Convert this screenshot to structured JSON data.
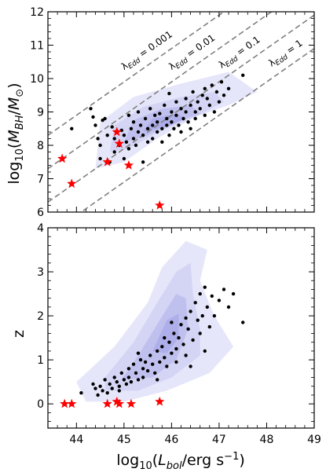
{
  "chart_data": [
    {
      "type": "scatter",
      "panel": "top",
      "xlim": [
        43.4,
        49
      ],
      "ylim": [
        6,
        12
      ],
      "xticks": [
        44,
        45,
        46,
        47,
        48,
        49
      ],
      "yticks": [
        6,
        7,
        8,
        9,
        10,
        11,
        12
      ],
      "ytick_labels": [
        "6",
        "7",
        "8",
        "9",
        "10",
        "11",
        "12"
      ],
      "ylabel": "log10(MBH/M⊙)",
      "ylabel_parts": {
        "pre": "log",
        "sub1": "10",
        "mid": "(",
        "M": "M",
        "subBH": "BH",
        "slash": "/",
        "M2": "M",
        "subsun": "⊙",
        "post": ")"
      },
      "eddington_lines": [
        {
          "label": "λEdd = 0.001",
          "label_parts": [
            "λ",
            "Edd",
            " = 0.001"
          ],
          "lambda": 0.001,
          "label_x": 45.0
        },
        {
          "label": "λEdd = 0.01",
          "label_parts": [
            "λ",
            "Edd",
            " = 0.01"
          ],
          "lambda": 0.01,
          "label_x": 46.0
        },
        {
          "label": "λEdd = 0.1",
          "label_parts": [
            "λ",
            "Edd",
            " = 0.1"
          ],
          "lambda": 0.1,
          "label_x": 47.05
        },
        {
          "label": "λEdd = 1",
          "label_parts": [
            "λ",
            "Edd",
            " = 1"
          ],
          "lambda": 1,
          "label_x": 48.1
        }
      ],
      "series": [
        {
          "marker": "dot",
          "color": "#000000",
          "points": [
            [
              43.9,
              8.5
            ],
            [
              44.3,
              9.1
            ],
            [
              44.35,
              8.85
            ],
            [
              44.4,
              8.6
            ],
            [
              44.45,
              8.2
            ],
            [
              44.5,
              7.6
            ],
            [
              44.5,
              8.0
            ],
            [
              44.6,
              8.8
            ],
            [
              44.65,
              8.3
            ],
            [
              44.7,
              7.5
            ],
            [
              44.75,
              8.55
            ],
            [
              44.8,
              8.2
            ],
            [
              44.8,
              7.8
            ],
            [
              44.85,
              8.4
            ],
            [
              44.9,
              8.0
            ],
            [
              44.95,
              8.45
            ],
            [
              45.0,
              8.3
            ],
            [
              45.0,
              7.6
            ],
            [
              45.05,
              8.1
            ],
            [
              45.1,
              8.9
            ],
            [
              45.1,
              7.9
            ],
            [
              45.15,
              8.5
            ],
            [
              45.2,
              8.2
            ],
            [
              45.2,
              8.7
            ],
            [
              45.25,
              8.0
            ],
            [
              45.3,
              8.4
            ],
            [
              45.3,
              9.0
            ],
            [
              45.35,
              8.6
            ],
            [
              45.4,
              8.3
            ],
            [
              45.4,
              7.5
            ],
            [
              45.45,
              8.8
            ],
            [
              45.5,
              8.1
            ],
            [
              45.5,
              8.5
            ],
            [
              45.55,
              9.1
            ],
            [
              45.6,
              8.6
            ],
            [
              45.6,
              8.2
            ],
            [
              45.65,
              8.9
            ],
            [
              45.7,
              8.4
            ],
            [
              45.7,
              8.7
            ],
            [
              45.75,
              8.95
            ],
            [
              45.8,
              8.5
            ],
            [
              45.8,
              8.1
            ],
            [
              45.85,
              9.2
            ],
            [
              45.9,
              8.8
            ],
            [
              45.9,
              8.6
            ],
            [
              45.95,
              8.3
            ],
            [
              46.0,
              9.0
            ],
            [
              46.0,
              8.7
            ],
            [
              46.05,
              8.5
            ],
            [
              46.1,
              9.3
            ],
            [
              46.1,
              8.9
            ],
            [
              46.15,
              8.6
            ],
            [
              46.2,
              9.1
            ],
            [
              46.2,
              8.4
            ],
            [
              46.25,
              8.8
            ],
            [
              46.3,
              9.4
            ],
            [
              46.3,
              9.0
            ],
            [
              46.35,
              8.7
            ],
            [
              46.4,
              9.2
            ],
            [
              46.4,
              8.5
            ],
            [
              46.45,
              9.6
            ],
            [
              46.5,
              9.0
            ],
            [
              46.5,
              8.8
            ],
            [
              46.55,
              9.3
            ],
            [
              46.6,
              9.1
            ],
            [
              46.65,
              9.5
            ],
            [
              46.7,
              9.7
            ],
            [
              46.7,
              8.9
            ],
            [
              46.75,
              9.4
            ],
            [
              46.8,
              9.2
            ],
            [
              46.85,
              9.8
            ],
            [
              46.9,
              9.0
            ],
            [
              46.95,
              9.6
            ],
            [
              47.0,
              9.3
            ],
            [
              47.05,
              9.9
            ],
            [
              47.1,
              9.5
            ],
            [
              47.2,
              9.7
            ],
            [
              47.5,
              10.1
            ],
            [
              44.55,
              8.75
            ],
            [
              45.95,
              9.55
            ]
          ]
        },
        {
          "marker": "star",
          "color": "#ff0000",
          "points": [
            [
              43.7,
              7.6
            ],
            [
              43.9,
              6.85
            ],
            [
              44.65,
              7.5
            ],
            [
              44.85,
              8.4
            ],
            [
              44.9,
              8.05
            ],
            [
              45.1,
              7.4
            ],
            [
              45.75,
              6.2
            ]
          ]
        }
      ],
      "contours": [
        {
          "level": 1,
          "color": "#e6e6fa",
          "polygon": [
            [
              44.4,
              7.3
            ],
            [
              44.5,
              8.7
            ],
            [
              45.2,
              9.45
            ],
            [
              46.2,
              9.85
            ],
            [
              47.2,
              10.2
            ],
            [
              47.8,
              9.6
            ],
            [
              47.2,
              9.2
            ],
            [
              46.5,
              8.85
            ],
            [
              45.7,
              8.2
            ],
            [
              45.0,
              7.5
            ]
          ]
        },
        {
          "level": 2,
          "color": "#d4d4f5",
          "polygon": [
            [
              44.7,
              7.8
            ],
            [
              44.8,
              8.6
            ],
            [
              45.4,
              9.15
            ],
            [
              46.2,
              9.45
            ],
            [
              46.9,
              9.6
            ],
            [
              47.1,
              9.3
            ],
            [
              46.5,
              8.85
            ],
            [
              45.8,
              8.45
            ],
            [
              45.1,
              7.9
            ]
          ]
        },
        {
          "level": 3,
          "color": "#c0c0ef",
          "polygon": [
            [
              45.0,
              8.1
            ],
            [
              45.2,
              8.75
            ],
            [
              45.8,
              9.1
            ],
            [
              46.4,
              9.2
            ],
            [
              46.6,
              8.95
            ],
            [
              46.0,
              8.65
            ],
            [
              45.5,
              8.3
            ]
          ]
        },
        {
          "level": 4,
          "color": "#aeaeea",
          "polygon": [
            [
              45.4,
              8.4
            ],
            [
              45.6,
              8.8
            ],
            [
              46.1,
              8.95
            ],
            [
              46.3,
              8.8
            ],
            [
              45.9,
              8.55
            ]
          ]
        }
      ]
    },
    {
      "type": "scatter",
      "panel": "bottom",
      "xlim": [
        43.4,
        49
      ],
      "ylim": [
        -0.55,
        4
      ],
      "xticks": [
        44,
        45,
        46,
        47,
        48,
        49
      ],
      "xtick_labels": [
        "44",
        "45",
        "46",
        "47",
        "48",
        "49"
      ],
      "yticks": [
        0,
        1,
        2,
        3,
        4
      ],
      "ytick_labels": [
        "0",
        "1",
        "2",
        "3",
        "4"
      ],
      "xlabel": "log10(Lbol/erg s−1)",
      "xlabel_parts": {
        "pre": "log",
        "sub": "10",
        "open": "(",
        "L": "L",
        "subbol": "bol",
        "mid": "/erg s",
        "sup": "−1",
        "close": ")"
      },
      "ylabel": "z",
      "series": [
        {
          "marker": "dot",
          "color": "#000000",
          "points": [
            [
              44.1,
              0.25
            ],
            [
              44.35,
              0.45
            ],
            [
              44.4,
              0.35
            ],
            [
              44.45,
              0.2
            ],
            [
              44.5,
              0.4
            ],
            [
              44.55,
              0.3
            ],
            [
              44.6,
              0.55
            ],
            [
              44.65,
              0.25
            ],
            [
              44.7,
              0.45
            ],
            [
              44.75,
              0.35
            ],
            [
              44.8,
              0.6
            ],
            [
              44.85,
              0.5
            ],
            [
              44.9,
              0.4
            ],
            [
              44.95,
              0.7
            ],
            [
              45.0,
              0.55
            ],
            [
              45.05,
              0.45
            ],
            [
              45.1,
              0.8
            ],
            [
              45.1,
              0.6
            ],
            [
              45.15,
              0.5
            ],
            [
              45.2,
              0.9
            ],
            [
              45.25,
              0.7
            ],
            [
              45.3,
              0.55
            ],
            [
              45.35,
              1.0
            ],
            [
              45.4,
              0.8
            ],
            [
              45.4,
              0.6
            ],
            [
              45.45,
              0.95
            ],
            [
              45.5,
              0.75
            ],
            [
              45.55,
              1.1
            ],
            [
              45.6,
              0.9
            ],
            [
              45.65,
              0.7
            ],
            [
              45.7,
              1.2
            ],
            [
              45.75,
              0.95
            ],
            [
              45.8,
              1.3
            ],
            [
              45.85,
              1.05
            ],
            [
              45.9,
              0.85
            ],
            [
              45.95,
              1.4
            ],
            [
              46.0,
              1.15
            ],
            [
              46.05,
              1.6
            ],
            [
              46.1,
              1.25
            ],
            [
              46.1,
              0.95
            ],
            [
              46.15,
              1.5
            ],
            [
              46.2,
              1.8
            ],
            [
              46.25,
              1.35
            ],
            [
              46.3,
              1.95
            ],
            [
              46.3,
              1.1
            ],
            [
              46.35,
              1.7
            ],
            [
              46.4,
              2.1
            ],
            [
              46.45,
              1.45
            ],
            [
              46.5,
              2.3
            ],
            [
              46.55,
              1.9
            ],
            [
              46.6,
              2.5
            ],
            [
              46.6,
              1.6
            ],
            [
              46.65,
              2.0
            ],
            [
              46.7,
              2.65
            ],
            [
              46.75,
              2.2
            ],
            [
              46.8,
              1.75
            ],
            [
              46.85,
              2.45
            ],
            [
              46.9,
              2.0
            ],
            [
              47.0,
              2.35
            ],
            [
              47.1,
              2.6
            ],
            [
              47.2,
              2.2
            ],
            [
              47.3,
              2.5
            ],
            [
              47.5,
              1.85
            ],
            [
              46.7,
              1.2
            ],
            [
              45.7,
              0.55
            ],
            [
              46.4,
              0.85
            ],
            [
              44.9,
              0.3
            ],
            [
              45.3,
              1.15
            ],
            [
              46.0,
              1.85
            ],
            [
              45.85,
              1.5
            ]
          ]
        },
        {
          "marker": "star",
          "color": "#ff0000",
          "points": [
            [
              43.75,
              0.0
            ],
            [
              43.9,
              0.0
            ],
            [
              44.65,
              0.0
            ],
            [
              44.85,
              0.05
            ],
            [
              44.9,
              0.0
            ],
            [
              45.15,
              0.0
            ],
            [
              45.75,
              0.05
            ]
          ]
        }
      ],
      "contours": [
        {
          "level": 1,
          "color": "#e6e6fa",
          "polygon": [
            [
              44.2,
              0.05
            ],
            [
              44.0,
              0.5
            ],
            [
              44.8,
              1.3
            ],
            [
              45.5,
              2.3
            ],
            [
              45.8,
              3.1
            ],
            [
              46.3,
              3.7
            ],
            [
              46.75,
              3.5
            ],
            [
              46.6,
              2.8
            ],
            [
              46.9,
              2.0
            ],
            [
              47.3,
              1.3
            ],
            [
              46.8,
              0.7
            ],
            [
              45.9,
              0.3
            ],
            [
              45.0,
              0.05
            ]
          ]
        },
        {
          "level": 2,
          "color": "#d4d4f5",
          "polygon": [
            [
              44.6,
              0.3
            ],
            [
              44.6,
              0.6
            ],
            [
              45.2,
              1.4
            ],
            [
              45.7,
              2.3
            ],
            [
              46.1,
              3.0
            ],
            [
              46.4,
              3.2
            ],
            [
              46.45,
              2.5
            ],
            [
              46.6,
              1.7
            ],
            [
              46.6,
              1.1
            ],
            [
              46.0,
              0.6
            ],
            [
              45.3,
              0.3
            ]
          ]
        },
        {
          "level": 3,
          "color": "#c0c0ef",
          "polygon": [
            [
              44.95,
              0.55
            ],
            [
              45.3,
              1.1
            ],
            [
              45.75,
              1.9
            ],
            [
              46.1,
              2.5
            ],
            [
              46.3,
              2.4
            ],
            [
              46.35,
              1.7
            ],
            [
              46.1,
              1.0
            ],
            [
              45.6,
              0.6
            ]
          ]
        },
        {
          "level": 4,
          "color": "#aeaeea",
          "polygon": [
            [
              45.6,
              1.2
            ],
            [
              45.9,
              1.9
            ],
            [
              46.15,
              2.05
            ],
            [
              46.15,
              1.5
            ],
            [
              45.9,
              1.15
            ]
          ]
        }
      ]
    }
  ]
}
